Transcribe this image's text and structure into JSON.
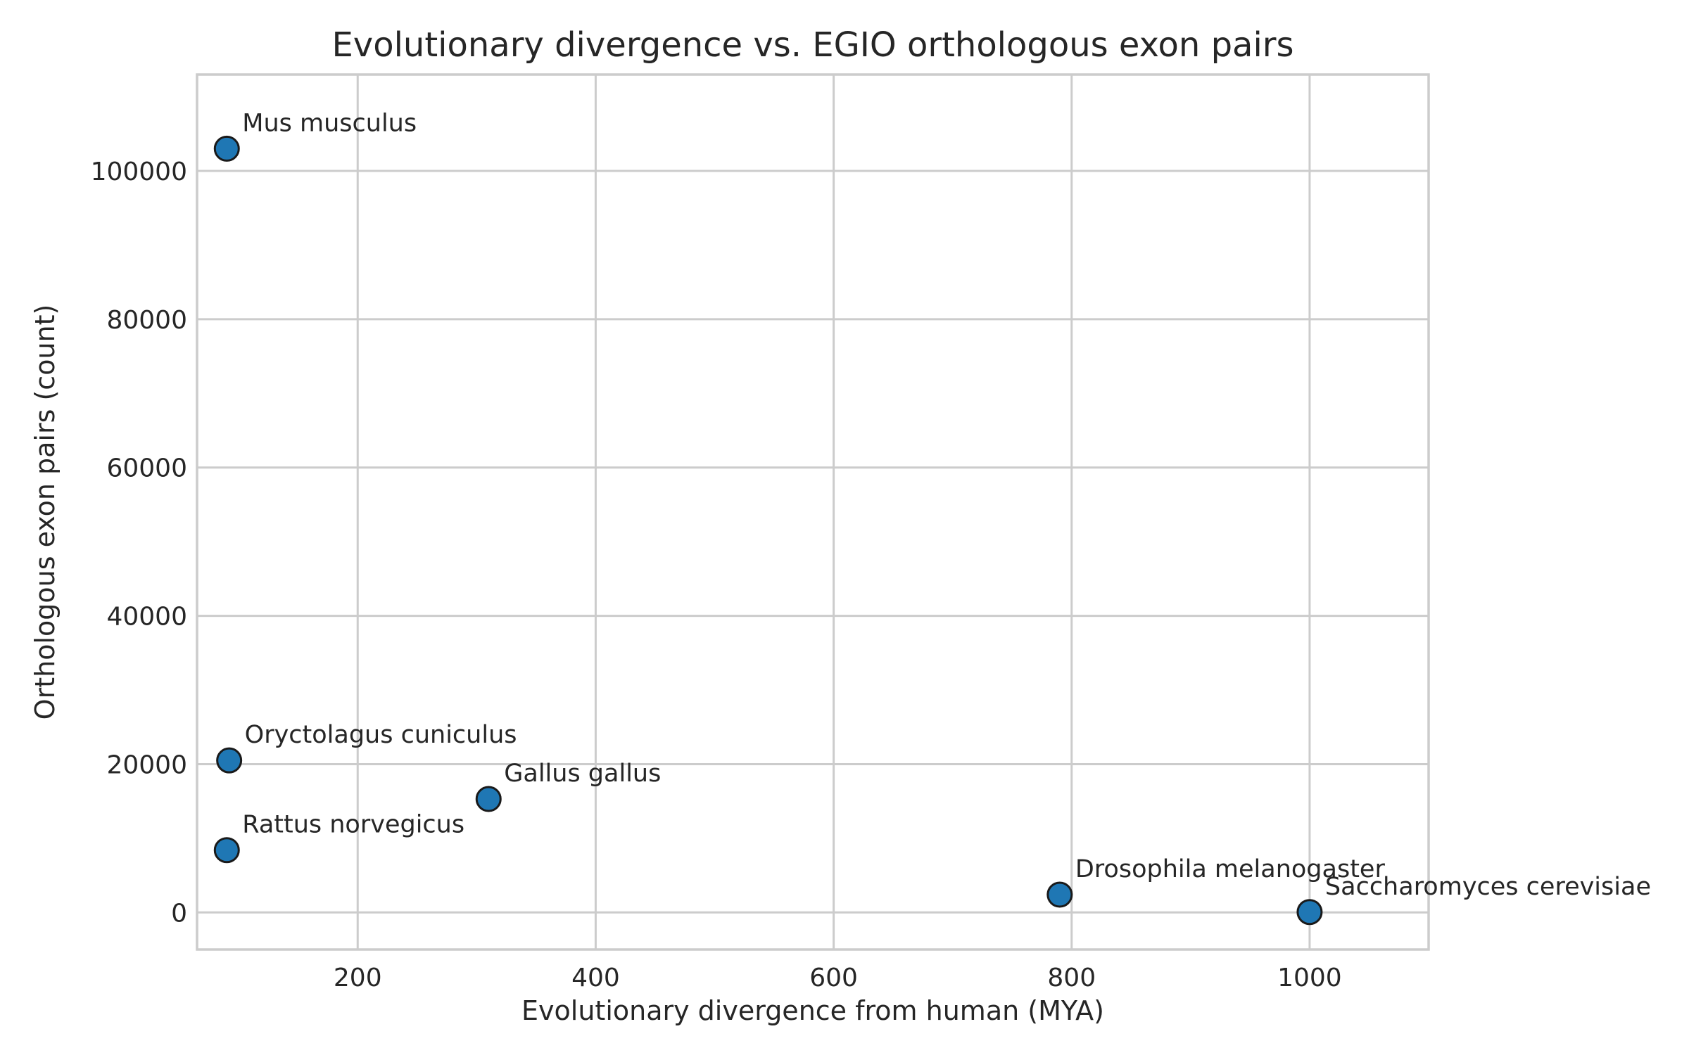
{
  "chart_data": {
    "type": "scatter",
    "title": "Evolutionary divergence vs. EGIO orthologous exon pairs",
    "xlabel": "Evolutionary divergence from human (MYA)",
    "ylabel": "Orthologous exon pairs (count)",
    "xlim": [
      65,
      1100
    ],
    "ylim": [
      -5000,
      113000
    ],
    "xticks": [
      200,
      400,
      600,
      800,
      1000
    ],
    "yticks": [
      0,
      20000,
      40000,
      60000,
      80000,
      100000
    ],
    "grid": true,
    "marker_color": "#1f77b4",
    "points": [
      {
        "label": "Mus musculus",
        "x": 90,
        "y": 103000
      },
      {
        "label": "Oryctolagus cuniculus",
        "x": 92,
        "y": 20500
      },
      {
        "label": "Rattus norvegicus",
        "x": 90,
        "y": 8400
      },
      {
        "label": "Gallus gallus",
        "x": 310,
        "y": 15300
      },
      {
        "label": "Drosophila melanogaster",
        "x": 790,
        "y": 2400
      },
      {
        "label": "Saccharomyces cerevisiae",
        "x": 1000,
        "y": 50
      }
    ]
  }
}
